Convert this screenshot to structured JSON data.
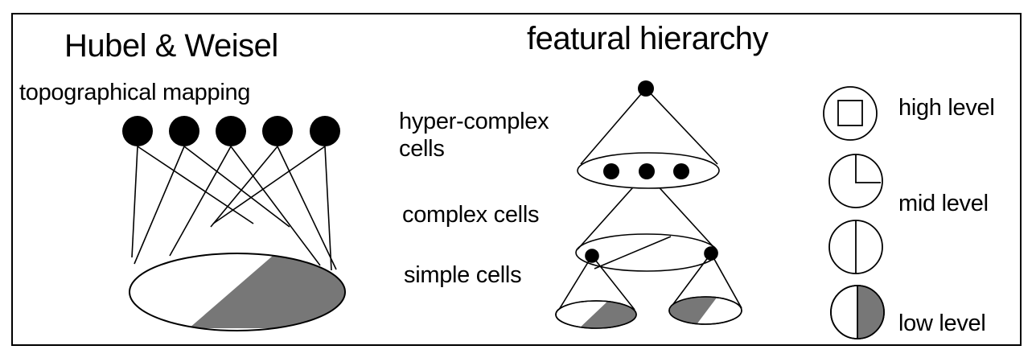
{
  "left": {
    "title": "Hubel & Weisel",
    "subtitle": "topographical mapping"
  },
  "middle": {
    "title": "featural hierarchy",
    "labels": {
      "hypercomplex": [
        "hyper-complex",
        "cells"
      ],
      "complex": "complex cells",
      "simple": "simple cells"
    }
  },
  "legend": {
    "high": "high level",
    "mid": "mid level",
    "low": "low level"
  },
  "colors": {
    "ink": "#000000",
    "shade": "#777777",
    "paper": "#ffffff"
  }
}
